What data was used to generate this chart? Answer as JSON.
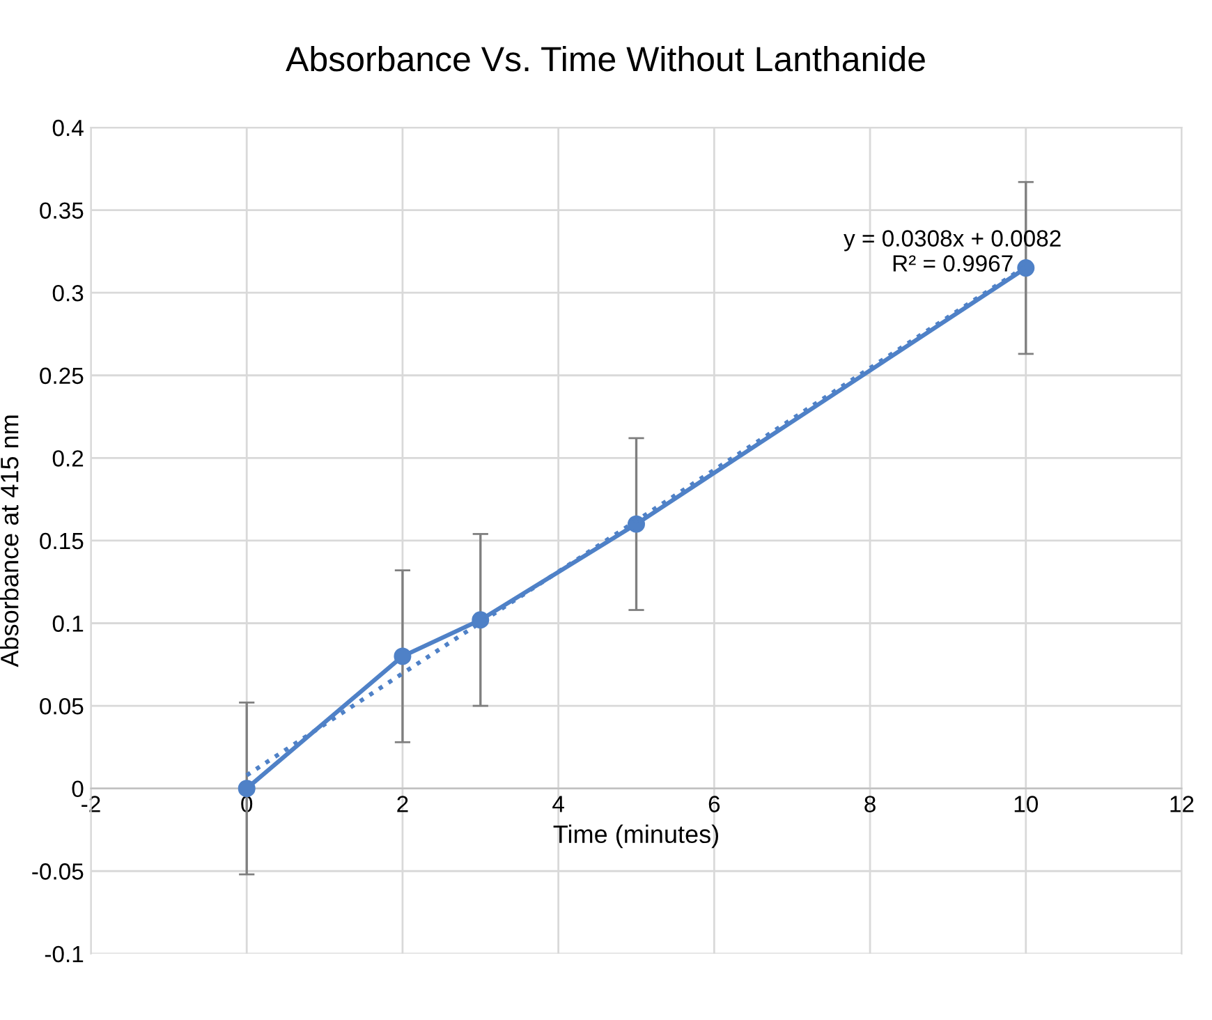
{
  "chart_data": {
    "type": "line",
    "title": "Absorbance Vs. Time Without Lanthanide",
    "xlabel": "Time (minutes)",
    "ylabel": "Absorbance at 415 nm",
    "x": [
      0,
      2,
      3,
      5,
      10
    ],
    "series": [
      {
        "color": "#4f81c7",
        "values": [
          0,
          0.08,
          0.102,
          0.16,
          0.315
        ],
        "errors": [
          0.052,
          0.052,
          0.052,
          0.052,
          0.052
        ],
        "marker": "circle",
        "line_style": "solid"
      },
      {
        "type": "line",
        "x": [
          0,
          10
        ],
        "color": "#4f81c7",
        "values": [
          0.008,
          0.316
        ],
        "marker": "none",
        "line_style": "dotted"
      }
    ],
    "annotations": [
      "y = 0.0308x + 0.0082\nR² = 0.9967"
    ],
    "xlim": [
      -2,
      12
    ],
    "xticks": [
      -2,
      0,
      2,
      4,
      6,
      8,
      10,
      12
    ],
    "ylim": [
      -0.1,
      0.4
    ],
    "yticks": [
      -0.1,
      -0.05,
      0,
      0.05,
      0.1,
      0.15,
      0.2,
      0.25,
      0.3,
      0.35,
      0.4
    ],
    "grid": true,
    "legend": false
  }
}
